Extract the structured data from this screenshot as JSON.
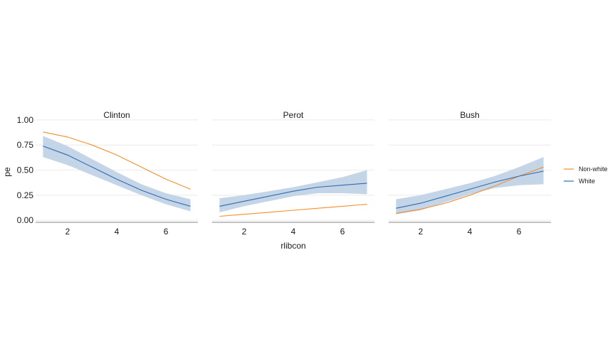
{
  "chart_data": {
    "type": "line",
    "xlabel": "rlibcon",
    "ylabel": "pe",
    "xlim": [
      0.7,
      7.3
    ],
    "ylim": [
      -0.02,
      1.02
    ],
    "x_ticks": [
      2,
      4,
      6
    ],
    "y_ticks": [
      0.0,
      0.25,
      0.5,
      0.75,
      1.0
    ],
    "y_tick_labels": [
      "0.00",
      "0.25",
      "0.50",
      "0.75",
      "1.00"
    ],
    "grid": "horizontal",
    "legend_position": "right",
    "legend": [
      {
        "name": "Non-white",
        "color": "#f28e2b"
      },
      {
        "name": "White",
        "color": "#2f6bad"
      }
    ],
    "band_color": "#c5d5e8",
    "x": [
      1,
      2,
      3,
      4,
      5,
      6,
      7
    ],
    "facets": [
      {
        "title": "Clinton",
        "series": [
          {
            "name": "Non-white",
            "values": [
              0.88,
              0.83,
              0.75,
              0.65,
              0.53,
              0.41,
              0.31
            ]
          },
          {
            "name": "White",
            "values": [
              0.74,
              0.65,
              0.53,
              0.41,
              0.3,
              0.21,
              0.14
            ],
            "lower": [
              0.63,
              0.55,
              0.45,
              0.35,
              0.25,
              0.16,
              0.09
            ],
            "upper": [
              0.84,
              0.74,
              0.61,
              0.48,
              0.36,
              0.27,
              0.21
            ]
          }
        ]
      },
      {
        "title": "Perot",
        "series": [
          {
            "name": "Non-white",
            "values": [
              0.04,
              0.06,
              0.08,
              0.1,
              0.12,
              0.14,
              0.16
            ]
          },
          {
            "name": "White",
            "values": [
              0.14,
              0.19,
              0.24,
              0.29,
              0.33,
              0.35,
              0.37
            ],
            "lower": [
              0.08,
              0.14,
              0.19,
              0.24,
              0.27,
              0.27,
              0.26
            ],
            "upper": [
              0.22,
              0.25,
              0.29,
              0.33,
              0.38,
              0.43,
              0.5
            ]
          }
        ]
      },
      {
        "title": "Bush",
        "series": [
          {
            "name": "Non-white",
            "values": [
              0.07,
              0.11,
              0.17,
              0.25,
              0.34,
              0.44,
              0.53
            ]
          },
          {
            "name": "White",
            "values": [
              0.12,
              0.17,
              0.24,
              0.31,
              0.38,
              0.44,
              0.49
            ],
            "lower": [
              0.06,
              0.1,
              0.18,
              0.26,
              0.32,
              0.35,
              0.36
            ],
            "upper": [
              0.21,
              0.25,
              0.31,
              0.37,
              0.44,
              0.53,
              0.63
            ]
          }
        ]
      }
    ]
  }
}
